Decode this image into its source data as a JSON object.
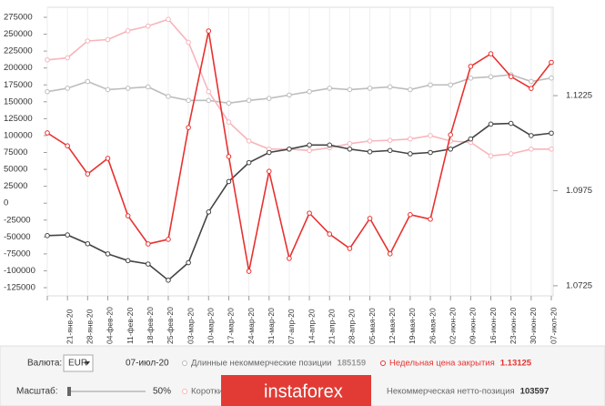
{
  "chart_data": {
    "type": "line",
    "categories": [
      null,
      "21-янв-20",
      "28-янв-20",
      "04-фев-20",
      "11-фев-20",
      "18-фев-20",
      "25-фев-20",
      "03-мар-20",
      "10-мар-20",
      "17-мар-20",
      "24-мар-20",
      "31-мар-20",
      "07-апр-20",
      "14-апр-20",
      "21-апр-20",
      "28-апр-20",
      "05-мая-20",
      "12-мая-20",
      "19-мая-20",
      "26-мая-20",
      "02-июн-20",
      "09-июн-20",
      "16-июн-20",
      "23-июн-20",
      "30-июн-20",
      "07-июл-20"
    ],
    "series": [
      {
        "name": "Длинные некоммерческие позиции",
        "color": "#bdbdbd",
        "values": [
          165000,
          170000,
          180000,
          168000,
          170000,
          172000,
          158000,
          152000,
          152000,
          148000,
          152000,
          155000,
          160000,
          165000,
          170000,
          168000,
          170000,
          172000,
          168000,
          175000,
          175000,
          185000,
          187000,
          190000,
          180000,
          185159
        ]
      },
      {
        "name": "Короткие некоммерческие позиции",
        "color": "#f7b5bc",
        "values": [
          212000,
          215000,
          240000,
          242000,
          255000,
          262000,
          272000,
          238000,
          165000,
          120000,
          92000,
          80000,
          80000,
          78000,
          82000,
          88000,
          92000,
          93000,
          95000,
          100000,
          92000,
          90000,
          70000,
          73000,
          80000,
          80000
        ]
      },
      {
        "name": "Некоммерческая нетто-позиция",
        "color": "#444444",
        "values": [
          -48000,
          -47000,
          -60000,
          -75000,
          -85000,
          -90000,
          -114000,
          -88000,
          -13000,
          32000,
          60000,
          75000,
          80000,
          86000,
          86000,
          80000,
          76000,
          78000,
          73000,
          75000,
          80000,
          95000,
          117000,
          118000,
          100000,
          103597
        ]
      },
      {
        "name": "Недельная цена закрытия",
        "color": "#e8312f",
        "axis": "y2",
        "values": [
          1.1127,
          1.1093,
          1.1019,
          1.106,
          1.0909,
          1.0835,
          1.0847,
          1.1141,
          1.1395,
          1.1065,
          1.0763,
          1.1026,
          1.0797,
          1.0916,
          1.0861,
          1.0823,
          1.0902,
          1.0809,
          1.0912,
          1.09,
          1.1122,
          1.1302,
          1.1335,
          1.1275,
          1.1244,
          1.13125
        ]
      }
    ],
    "ylim": [
      -125000,
      275000
    ],
    "yticks": [
      -125000,
      -100000,
      -75000,
      -50000,
      -25000,
      0,
      25000,
      50000,
      75000,
      100000,
      125000,
      150000,
      175000,
      200000,
      225000,
      250000,
      275000
    ],
    "y2lim": [
      1.072,
      1.1431
    ],
    "y2ticks": [
      1.0725,
      1.0975,
      1.1225
    ]
  },
  "controls": {
    "currency_label": "Валюта:",
    "currency": "EUR",
    "date": "07-июл-20",
    "scale_label": "Масштаб:",
    "scale": "50%",
    "watermark": "instaforex"
  }
}
